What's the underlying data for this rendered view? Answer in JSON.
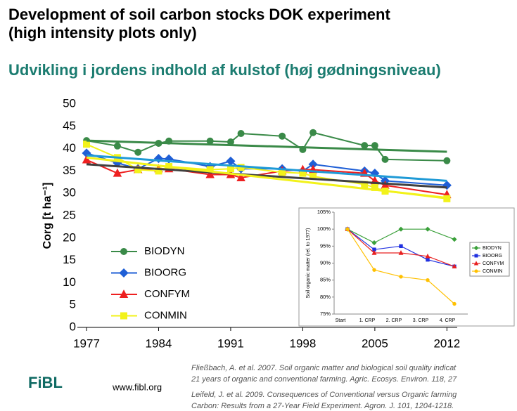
{
  "slide": {
    "title_lines": [
      "Development of soil carbon stocks DOK experiment",
      "(high intensity plots only)"
    ],
    "subtitle": "Udvikling i jordens indhold af kulstof (høj gødningsniveau)",
    "logo": "FiBL",
    "url": "www.fibl.org",
    "references": [
      "Fließbach, A. et al. 2007. Soil organic matter and biological soil quality indicat",
      "21 years of organic and conventional farming. Agric. Ecosys. Environ. 118, 27",
      "Leifeld, J. et al. 2009. Consequences of Conventional versus Organic farming",
      "Carbon: Results from a 27-Year Field Experiment. Agron. J. 101, 1204-1218."
    ]
  },
  "chart_data": [
    {
      "type": "line",
      "y_label": "Corg [t ha⁻¹]",
      "xlim": [
        1977,
        2013
      ],
      "xticks": [
        1977,
        1984,
        1991,
        1998,
        2005,
        2012
      ],
      "ylim": [
        0,
        50
      ],
      "yticks": [
        0,
        5,
        10,
        15,
        20,
        25,
        30,
        35,
        40,
        45,
        50
      ],
      "legend": "left",
      "x": [
        1977,
        1980,
        1982,
        1984,
        1985,
        1989,
        1991,
        1992,
        1996,
        1998,
        1999,
        2004,
        2005,
        2006,
        2012
      ],
      "trend_x": [
        1977,
        2012
      ],
      "series": [
        {
          "name": "BIODYN",
          "color": "#3a8a48",
          "marker": "circle",
          "values": [
            41.8,
            40.6,
            39.2,
            41.2,
            41.7,
            41.7,
            41.5,
            43.4,
            42.8,
            39.8,
            43.6,
            40.7,
            40.7,
            37.6,
            37.3
          ],
          "trend": [
            41.8,
            39.3
          ],
          "trend_color": "#3a8a48"
        },
        {
          "name": "BIOORG",
          "color": "#1f5fd6",
          "marker": "diamond",
          "values": [
            39,
            36.8,
            35.5,
            37.8,
            37.7,
            36,
            37.2,
            35.5,
            35.5,
            35,
            36.5,
            35,
            34.5,
            32.8,
            31.8
          ],
          "trend": [
            38.5,
            32.8
          ],
          "trend_color": "#1f9ad6"
        },
        {
          "name": "CONFYM",
          "color": "#ee2020",
          "marker": "triangle",
          "values": [
            37.5,
            34.5,
            35.3,
            35.5,
            35.5,
            34.2,
            34.2,
            33.5,
            35,
            35.3,
            35.3,
            34.5,
            32.8,
            31.8,
            29.7
          ],
          "trend": [
            36.5,
            31.3
          ],
          "trend_color": "#404040"
        },
        {
          "name": "CONMIN",
          "color": "#f2f21a",
          "marker": "square",
          "values": [
            41,
            38,
            35.3,
            35,
            36,
            35.3,
            35.5,
            35.8,
            34.7,
            34.5,
            33.8,
            32,
            31.3,
            30.5,
            28.8
          ],
          "trend": [
            38,
            29
          ],
          "trend_color": "#f2f21a"
        }
      ]
    },
    {
      "type": "line",
      "y_label": "Soil organic matter (rel. to 1977)",
      "categories": [
        "Start",
        "1. CRP",
        "2. CRP",
        "3. CRP",
        "4. CRP"
      ],
      "ylim": [
        75,
        105
      ],
      "yticks": [
        {
          "value": 75,
          "label": "75%"
        },
        {
          "value": 80,
          "label": "80%"
        },
        {
          "value": 85,
          "label": "85%"
        },
        {
          "value": 90,
          "label": "90%"
        },
        {
          "value": 95,
          "label": "95%"
        },
        {
          "value": 100,
          "label": "100%"
        },
        {
          "value": 105,
          "label": "105%"
        }
      ],
      "grid": false,
      "legend": "right",
      "series": [
        {
          "name": "BIODYN",
          "color": "#3aa03a",
          "marker": "diamond",
          "values": [
            100,
            96,
            100,
            100,
            97
          ]
        },
        {
          "name": "BIOORG",
          "color": "#2030e0",
          "marker": "square",
          "values": [
            100,
            94,
            95,
            91,
            89
          ]
        },
        {
          "name": "CONFYM",
          "color": "#e82020",
          "marker": "triangle",
          "values": [
            100,
            93,
            93,
            92,
            89
          ]
        },
        {
          "name": "CONMIN",
          "color": "#ffc000",
          "marker": "circle",
          "values": [
            100,
            88,
            86,
            85,
            78
          ]
        }
      ]
    }
  ]
}
